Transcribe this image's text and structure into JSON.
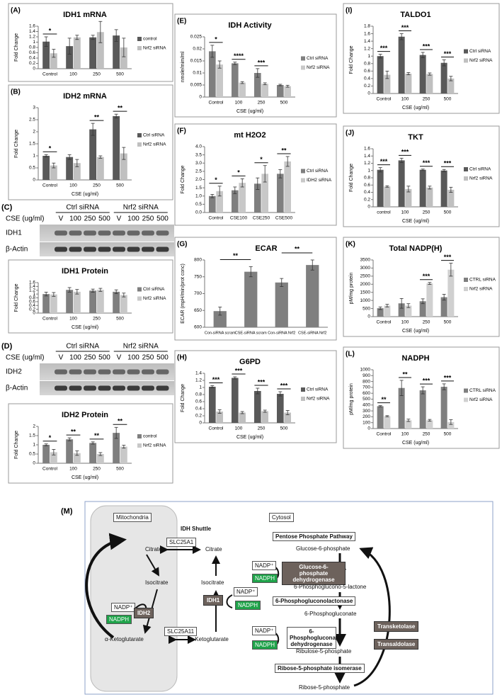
{
  "chart_data": [
    {
      "type": "bar",
      "label": "(A)",
      "title": "IDH1 mRNA",
      "ylabel": "Fold Change",
      "categories": [
        "Control",
        "100",
        "250",
        "500"
      ],
      "series": [
        {
          "name": "control",
          "color": "#595959",
          "values": [
            1.02,
            0.85,
            1.18,
            1.25
          ],
          "errors": [
            0.18,
            0.3,
            0.08,
            0.22
          ]
        },
        {
          "name": "Nrf2 siRNA",
          "color": "#c0c0c0",
          "values": [
            0.58,
            1.18,
            1.38,
            0.8
          ],
          "errors": [
            0.15,
            0.08,
            0.4,
            0.35
          ]
        }
      ],
      "significance": [
        "*",
        null,
        null,
        null
      ],
      "ylim": [
        0,
        1.6
      ],
      "yticks": [
        0,
        0.2,
        0.4,
        0.6,
        0.8,
        1,
        1.2,
        1.4,
        1.6
      ],
      "legend": "right"
    },
    {
      "type": "bar",
      "label": "(B)",
      "title": "IDH2 mRNA",
      "ylabel": "Fold Change",
      "xlabel": "CSE (ug/ml)",
      "categories": [
        "Control",
        "100",
        "250",
        "500"
      ],
      "series": [
        {
          "name": "Ctrl siRNA",
          "color": "#595959",
          "values": [
            1.0,
            0.95,
            2.1,
            2.65
          ],
          "errors": [
            0.05,
            0.1,
            0.25,
            0.08
          ]
        },
        {
          "name": "Nrf2 siRNA",
          "color": "#c0c0c0",
          "values": [
            0.6,
            0.7,
            0.95,
            1.1
          ],
          "errors": [
            0.1,
            0.15,
            0.05,
            0.25
          ]
        }
      ],
      "significance": [
        "*",
        null,
        "**",
        "**"
      ],
      "ylim": [
        0,
        3
      ],
      "yticks": [
        0,
        0.5,
        1,
        1.5,
        2,
        2.5,
        3
      ],
      "legend": "right"
    },
    {
      "type": "bar",
      "title": "IDH1 Protein",
      "ylabel": "Fold Change",
      "xlabel": "CSE (ug/ml)",
      "categories": [
        "Control",
        "100",
        "250",
        "500"
      ],
      "series": [
        {
          "name": "Ctrl siRNA",
          "color": "#7f7f7f",
          "values": [
            1.0,
            1.22,
            1.18,
            1.12
          ],
          "errors": [
            0.1,
            0.12,
            0.08,
            0.1
          ]
        },
        {
          "name": "Nrf2 siRNA",
          "color": "#c8c8c8",
          "values": [
            0.98,
            1.12,
            1.22,
            0.95
          ],
          "errors": [
            0.1,
            0.12,
            0.08,
            0.1
          ]
        }
      ],
      "ylim": [
        0,
        1.6
      ],
      "yticks": [
        0,
        0.2,
        0.4,
        0.6,
        0.8,
        1,
        1.2,
        1.4,
        1.6
      ],
      "legend": "right"
    },
    {
      "type": "bar",
      "title": "IDH2 Protein",
      "ylabel": "Fold Change",
      "xlabel": "CSE (ug/ml)",
      "categories": [
        "Control",
        "100",
        "250",
        "500"
      ],
      "series": [
        {
          "name": "control",
          "color": "#7f7f7f",
          "values": [
            1.0,
            1.3,
            1.1,
            1.65
          ],
          "errors": [
            0.05,
            0.08,
            0.06,
            0.3
          ]
        },
        {
          "name": "Nrf2 siRNA",
          "color": "#c8c8c8",
          "values": [
            0.6,
            0.55,
            0.5,
            0.9
          ],
          "errors": [
            0.15,
            0.12,
            0.08,
            0.08
          ]
        }
      ],
      "significance": [
        "*",
        "**",
        "**",
        "**"
      ],
      "ylim": [
        0,
        2
      ],
      "yticks": [
        0,
        0.5,
        1,
        1.5,
        2
      ],
      "legend": "right"
    },
    {
      "type": "bar",
      "label": "(E)",
      "title": "IDH Activity",
      "ylabel": "nmole/mim/ml",
      "xlabel": "CSE (ug/ml)",
      "categories": [
        "Control",
        "100",
        "250",
        "500"
      ],
      "series": [
        {
          "name": "Ctrl siRNA",
          "color": "#7f7f7f",
          "values": [
            0.019,
            0.014,
            0.01,
            0.005
          ],
          "errors": [
            0.0025,
            0.0005,
            0.0018,
            0.0003
          ]
        },
        {
          "name": "Nrf2 siRNA",
          "color": "#c8c8c8",
          "values": [
            0.0135,
            0.006,
            0.0055,
            0.0045
          ],
          "errors": [
            0.0015,
            0.0004,
            0.0004,
            0.0004
          ]
        }
      ],
      "significance": [
        "*",
        "****",
        "***",
        null
      ],
      "ylim": [
        0,
        0.025
      ],
      "yticks": [
        0,
        0.005,
        0.01,
        0.015,
        0.02,
        0.025
      ],
      "legend": "right"
    },
    {
      "type": "bar",
      "label": "(F)",
      "title": "mt H2O2",
      "ylabel": "Fold Change",
      "categories": [
        "Control",
        "CSE100",
        "CSE250",
        "CSE500"
      ],
      "series": [
        {
          "name": "Ctrl siRNA",
          "color": "#7f7f7f",
          "values": [
            1.0,
            1.35,
            1.75,
            2.35
          ],
          "errors": [
            0.1,
            0.2,
            0.35,
            0.25
          ]
        },
        {
          "name": "IDH2 siRNA",
          "color": "#c8c8c8",
          "values": [
            1.3,
            1.8,
            2.35,
            3.1
          ],
          "errors": [
            0.3,
            0.25,
            0.5,
            0.3
          ]
        }
      ],
      "significance": [
        "*",
        "*",
        "*",
        "**"
      ],
      "ylim": [
        0,
        4
      ],
      "yticks": [
        {
          "value": 0,
          "label": "0.0"
        },
        {
          "value": 0.5,
          "label": "0.5"
        },
        {
          "value": 1,
          "label": "1.0"
        },
        {
          "value": 1.5,
          "label": "1.5"
        },
        {
          "value": 2,
          "label": "2.0"
        },
        {
          "value": 2.5,
          "label": "2.5"
        },
        {
          "value": 3,
          "label": "3.0"
        },
        {
          "value": 3.5,
          "label": "3.5"
        },
        {
          "value": 4,
          "label": "4.0"
        }
      ],
      "legend": "right"
    },
    {
      "type": "bar",
      "label": "(G)",
      "title": "ECAR",
      "ylabel": "ECAR (mpH/min/prot conc)",
      "categories": [
        "Con-siRNA scram",
        "CSE-siRNA scram",
        "Con-siRNA Nrf2",
        "CSE-siRNA Nrf2"
      ],
      "series": [
        {
          "name": "ECAR",
          "color": "#7f7f7f",
          "values": [
            648,
            765,
            733,
            785
          ],
          "errors": [
            12,
            15,
            12,
            15
          ]
        }
      ],
      "significance": [
        "**",
        null,
        "**",
        null
      ],
      "ylim": [
        600,
        800
      ],
      "yticks": [
        600,
        650,
        700,
        750,
        800
      ]
    },
    {
      "type": "bar",
      "label": "(H)",
      "title": "G6PD",
      "ylabel": "Fold Change",
      "xlabel": "CSE (ug/ml)",
      "categories": [
        "Control",
        "100",
        "250",
        "500"
      ],
      "series": [
        {
          "name": "Ctrl siRNA",
          "color": "#595959",
          "values": [
            1.02,
            1.27,
            0.9,
            0.82
          ],
          "errors": [
            0.03,
            0.03,
            0.08,
            0.06
          ]
        },
        {
          "name": "Nrf2 siRNA",
          "color": "#c0c0c0",
          "values": [
            0.32,
            0.29,
            0.33,
            0.29
          ],
          "errors": [
            0.05,
            0.03,
            0.03,
            0.06
          ]
        }
      ],
      "significance": [
        "***",
        "***",
        "***",
        "***"
      ],
      "ylim": [
        0,
        1.4
      ],
      "yticks": [
        0,
        0.2,
        0.4,
        0.6,
        0.8,
        1,
        1.2,
        1.4
      ],
      "legend": "right"
    },
    {
      "type": "bar",
      "label": "(I)",
      "title": "TALDO1",
      "ylabel": "Fold Change",
      "xlabel": "CSE (ug/ml)",
      "categories": [
        "Control",
        "100",
        "250",
        "500"
      ],
      "series": [
        {
          "name": "Ctrl siRNA",
          "color": "#595959",
          "values": [
            1.0,
            1.52,
            1.03,
            0.82
          ],
          "errors": [
            0.05,
            0.08,
            0.07,
            0.08
          ]
        },
        {
          "name": "Nrf2 siRNA",
          "color": "#c0c0c0",
          "values": [
            0.5,
            0.53,
            0.52,
            0.4
          ],
          "errors": [
            0.1,
            0.03,
            0.03,
            0.06
          ]
        }
      ],
      "significance": [
        "***",
        "***",
        "***",
        "***"
      ],
      "ylim": [
        0,
        1.8
      ],
      "yticks": [
        0,
        0.2,
        0.4,
        0.6,
        0.8,
        1,
        1.2,
        1.4,
        1.6,
        1.8
      ],
      "legend": "right"
    },
    {
      "type": "bar",
      "label": "(J)",
      "title": "TKT",
      "ylabel": "Fold Change",
      "xlabel": "CSE (ug/ml)",
      "categories": [
        "control",
        "100",
        "250",
        "500"
      ],
      "series": [
        {
          "name": "Ctrl siRNA",
          "color": "#595959",
          "values": [
            1.02,
            1.28,
            1.02,
            1.0
          ],
          "errors": [
            0.06,
            0.06,
            0.02,
            0.03
          ]
        },
        {
          "name": "Nrf2 siRNA",
          "color": "#c0c0c0",
          "values": [
            0.56,
            0.49,
            0.53,
            0.47
          ],
          "errors": [
            0.02,
            0.08,
            0.04,
            0.07
          ]
        }
      ],
      "significance": [
        "***",
        "***",
        "***",
        "***"
      ],
      "ylim": [
        0,
        1.6
      ],
      "yticks": [
        0,
        0.2,
        0.4,
        0.6,
        0.8,
        1,
        1.2,
        1.4,
        1.6
      ],
      "legend": "right"
    },
    {
      "type": "bar",
      "label": "(K)",
      "title": "Total NADP(H)",
      "ylabel": "pM/mg protein",
      "xlabel": "CSE (ug/ml)",
      "categories": [
        "Control",
        "100",
        "250",
        "500"
      ],
      "series": [
        {
          "name": "CTRL siRNA",
          "color": "#7f7f7f",
          "values": [
            520,
            820,
            950,
            1200
          ],
          "errors": [
            80,
            300,
            150,
            180
          ]
        },
        {
          "name": "Nrf2 siRNA",
          "color": "#d0d0d0",
          "values": [
            680,
            680,
            2050,
            2900
          ],
          "errors": [
            80,
            120,
            60,
            400
          ]
        }
      ],
      "significance": [
        null,
        null,
        "***",
        "***"
      ],
      "ylim": [
        0,
        3500
      ],
      "yticks": [
        0,
        500,
        1000,
        1500,
        2000,
        2500,
        3000,
        3500
      ],
      "legend": "right"
    },
    {
      "type": "bar",
      "label": "(L)",
      "title": "NADPH",
      "ylabel": "pM/mg protein",
      "xlabel": "CSE (ug/ml)",
      "categories": [
        "Control",
        "100",
        "250",
        "500"
      ],
      "series": [
        {
          "name": "CTRL siRNA",
          "color": "#7f7f7f",
          "values": [
            380,
            690,
            650,
            710
          ],
          "errors": [
            10,
            130,
            60,
            50
          ]
        },
        {
          "name": "Nrf2 siRNA",
          "color": "#d0d0d0",
          "values": [
            210,
            140,
            140,
            110
          ],
          "errors": [
            10,
            20,
            15,
            40
          ]
        }
      ],
      "significance": [
        "**",
        "**",
        "***",
        "***"
      ],
      "ylim": [
        0,
        1000
      ],
      "yticks": [
        0,
        100,
        200,
        300,
        400,
        500,
        600,
        700,
        800,
        900,
        1000
      ],
      "legend": "right"
    }
  ],
  "blots": [
    {
      "label": "(C)",
      "axis_label": "CSE (ug/ml)",
      "groups": [
        "Ctrl siRNA",
        "Nrf2 siRNA"
      ],
      "lanes": [
        "V",
        "100",
        "250",
        "500",
        "V",
        "100",
        "250",
        "500"
      ],
      "rows": [
        "IDH1",
        "β-Actin"
      ]
    },
    {
      "label": "(D)",
      "axis_label": "CSE (ug/ml)",
      "groups": [
        "Ctrl siRNA",
        "Nrf2 siRNA"
      ],
      "lanes": [
        "V",
        "100",
        "250",
        "500",
        "V",
        "100",
        "250",
        "500"
      ],
      "rows": [
        "IDH2",
        "β-Actin"
      ]
    }
  ],
  "diagram": {
    "label": "(M)",
    "nodes": [
      "Mitochondria",
      "Cytosol",
      "IDH Shuttle",
      "Citrate",
      "SLC25A1",
      "Citrate",
      "Isocitrate",
      "Isocitrate",
      "NADP⁺",
      "NADPH",
      "IDH2",
      "IDH1",
      "NADP⁺",
      "NADPH",
      "SLC25A11",
      "α-Ketoglutarate",
      "α-Ketoglutarate",
      "Pentose Phosphate Pathway",
      "Glucose-6-phosphate",
      "NADP⁺",
      "NADPH",
      "Glucose-6-phosphate dehydrogenase",
      "6-Phosphoglucono-5-lactone",
      "6-Phosphogluconolactonase",
      "6-Phosphogluconate",
      "NADP⁺",
      "NADPH",
      "6-Phosphogluconate dehydrogenase",
      "Ribulose-5-phosphate",
      "Ribose-5-phosphate isomerase",
      "Ribose-5-phosphate",
      "Transketolase",
      "Transaldolase"
    ]
  }
}
